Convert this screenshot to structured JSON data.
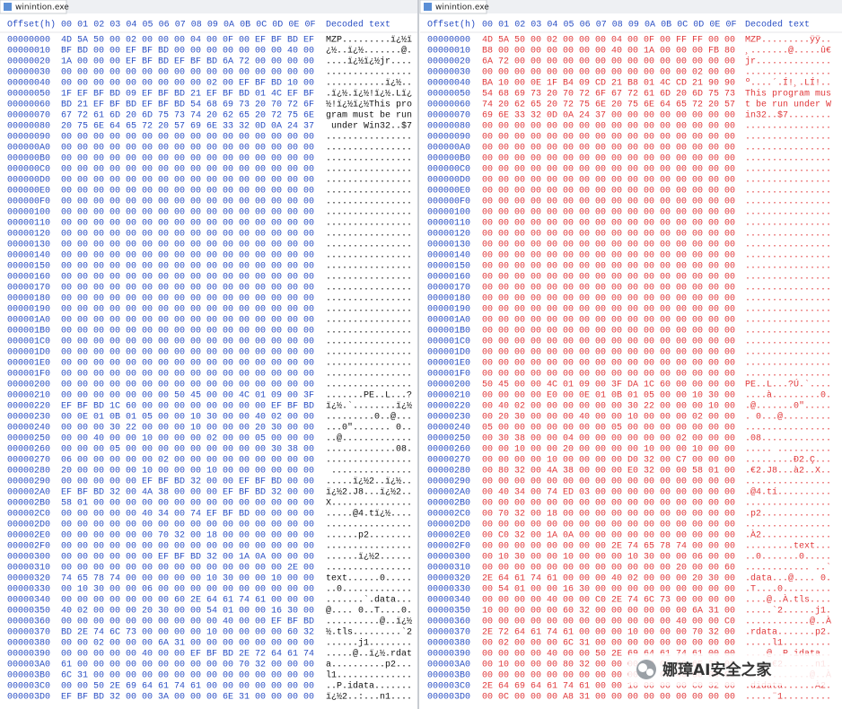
{
  "panes": [
    {
      "title": "winintion.exe",
      "header": {
        "offset": "Offset(h)",
        "columns": [
          "00",
          "01",
          "02",
          "03",
          "04",
          "05",
          "06",
          "07",
          "08",
          "09",
          "0A",
          "0B",
          "0C",
          "0D",
          "0E",
          "0F"
        ],
        "decoded": "Decoded text"
      },
      "rows": [
        [
          "00000000",
          "4D 5A 50 00 02 00 00 00 04 00 0F 00 EF BF BD EF",
          "MZP.........ï¿½ï"
        ],
        [
          "00000010",
          "BF BD 00 00 EF BF BD 00 00 00 00 00 00 00 40 00",
          "¿½..ï¿½.......@."
        ],
        [
          "00000020",
          "1A 00 00 00 EF BF BD EF BF BD 6A 72 00 00 00 00",
          "....ï¿½ï¿½jr...."
        ],
        [
          "00000030",
          "00 00 00 00 00 00 00 00 00 00 00 00 00 00 00 00",
          "................"
        ],
        [
          "00000040",
          "00 00 00 00 00 00 00 00 00 02 00 EF BF BD 10 00",
          "...........ï¿½.."
        ],
        [
          "00000050",
          "1F EF BF BD 09 EF BF BD 21 EF BF BD 01 4C EF BF",
          ".ï¿½.ï¿½!ï¿½.Lï¿"
        ],
        [
          "00000060",
          "BD 21 EF BF BD EF BF BD 54 68 69 73 20 70 72 6F",
          "½!ï¿½ï¿½This pro"
        ],
        [
          "00000070",
          "67 72 61 6D 20 6D 75 73 74 20 62 65 20 72 75 6E",
          "gram must be run"
        ],
        [
          "00000080",
          "20 75 6E 64 65 72 20 57 69 6E 33 32 0D 0A 24 37",
          " under Win32..$7"
        ],
        [
          "00000090",
          "00 00 00 00 00 00 00 00 00 00 00 00 00 00 00 00",
          "................"
        ],
        [
          "000000A0",
          "00 00 00 00 00 00 00 00 00 00 00 00 00 00 00 00",
          "................"
        ],
        [
          "000000B0",
          "00 00 00 00 00 00 00 00 00 00 00 00 00 00 00 00",
          "................"
        ],
        [
          "000000C0",
          "00 00 00 00 00 00 00 00 00 00 00 00 00 00 00 00",
          "................"
        ],
        [
          "000000D0",
          "00 00 00 00 00 00 00 00 00 00 00 00 00 00 00 00",
          "................"
        ],
        [
          "000000E0",
          "00 00 00 00 00 00 00 00 00 00 00 00 00 00 00 00",
          "................"
        ],
        [
          "000000F0",
          "00 00 00 00 00 00 00 00 00 00 00 00 00 00 00 00",
          "................"
        ],
        [
          "00000100",
          "00 00 00 00 00 00 00 00 00 00 00 00 00 00 00 00",
          "................"
        ],
        [
          "00000110",
          "00 00 00 00 00 00 00 00 00 00 00 00 00 00 00 00",
          "................"
        ],
        [
          "00000120",
          "00 00 00 00 00 00 00 00 00 00 00 00 00 00 00 00",
          "................"
        ],
        [
          "00000130",
          "00 00 00 00 00 00 00 00 00 00 00 00 00 00 00 00",
          "................"
        ],
        [
          "00000140",
          "00 00 00 00 00 00 00 00 00 00 00 00 00 00 00 00",
          "................"
        ],
        [
          "00000150",
          "00 00 00 00 00 00 00 00 00 00 00 00 00 00 00 00",
          "................"
        ],
        [
          "00000160",
          "00 00 00 00 00 00 00 00 00 00 00 00 00 00 00 00",
          "................"
        ],
        [
          "00000170",
          "00 00 00 00 00 00 00 00 00 00 00 00 00 00 00 00",
          "................"
        ],
        [
          "00000180",
          "00 00 00 00 00 00 00 00 00 00 00 00 00 00 00 00",
          "................"
        ],
        [
          "00000190",
          "00 00 00 00 00 00 00 00 00 00 00 00 00 00 00 00",
          "................"
        ],
        [
          "000001A0",
          "00 00 00 00 00 00 00 00 00 00 00 00 00 00 00 00",
          "................"
        ],
        [
          "000001B0",
          "00 00 00 00 00 00 00 00 00 00 00 00 00 00 00 00",
          "................"
        ],
        [
          "000001C0",
          "00 00 00 00 00 00 00 00 00 00 00 00 00 00 00 00",
          "................"
        ],
        [
          "000001D0",
          "00 00 00 00 00 00 00 00 00 00 00 00 00 00 00 00",
          "................"
        ],
        [
          "000001E0",
          "00 00 00 00 00 00 00 00 00 00 00 00 00 00 00 00",
          "................"
        ],
        [
          "000001F0",
          "00 00 00 00 00 00 00 00 00 00 00 00 00 00 00 00",
          "................"
        ],
        [
          "00000200",
          "00 00 00 00 00 00 00 00 00 00 00 00 00 00 00 00",
          "................"
        ],
        [
          "00000210",
          "00 00 00 00 00 00 00 50 45 00 00 4C 01 09 00 3F",
          ".......PE..L...?"
        ],
        [
          "00000220",
          "EF BF BD 1C 60 00 00 00 00 00 00 00 00 EF BF BD",
          "ï¿½.`........ï¿½"
        ],
        [
          "00000230",
          "00 0E 01 0B 01 05 00 00 10 30 00 00 40 02 00 00",
          ".........0..@..."
        ],
        [
          "00000240",
          "00 00 00 30 22 00 00 00 10 00 00 00 20 30 00 00",
          "...0\"....... 0.."
        ],
        [
          "00000250",
          "00 00 40 00 00 10 00 00 00 02 00 00 05 00 00 00",
          "..@............."
        ],
        [
          "00000260",
          "00 00 00 05 00 00 00 00 00 00 00 00 00 30 38 00",
          ".............08."
        ],
        [
          "00000270",
          "06 00 00 00 00 00 02 00 00 00 00 00 00 00 00 00",
          "................"
        ],
        [
          "00000280",
          "20 00 00 00 00 10 00 00 00 10 00 00 00 00 00 00",
          " ..............."
        ],
        [
          "00000290",
          "00 00 00 00 00 EF BF BD 32 00 00 EF BF BD 00 00",
          ".....ï¿½2..ï¿½.."
        ],
        [
          "000002A0",
          "EF BF BD 32 00 4A 38 00 00 00 EF BF BD 32 00 00",
          "ï¿½2.J8...ï¿½2.."
        ],
        [
          "000002B0",
          "58 01 00 00 00 00 00 00 00 00 00 00 00 00 00 00",
          "X..............."
        ],
        [
          "000002C0",
          "00 00 00 00 00 40 34 00 74 EF BF BD 00 00 00 00",
          ".....@4.tï¿½...."
        ],
        [
          "000002D0",
          "00 00 00 00 00 00 00 00 00 00 00 00 00 00 00 00",
          "................"
        ],
        [
          "000002E0",
          "00 00 00 00 00 00 70 32 00 18 00 00 00 00 00 00",
          "......p2........"
        ],
        [
          "000002F0",
          "00 00 00 00 00 00 00 00 00 00 00 00 00 00 00 00",
          "................"
        ],
        [
          "00000300",
          "00 00 00 00 00 00 EF BF BD 32 00 1A 0A 00 00 00",
          "......ï¿½2......"
        ],
        [
          "00000310",
          "00 00 00 00 00 00 00 00 00 00 00 00 00 00 2E 00",
          "................"
        ],
        [
          "00000320",
          "74 65 78 74 00 00 00 00 00 10 30 00 00 10 00 00",
          "text......0....."
        ],
        [
          "00000330",
          "00 10 30 00 00 06 00 00 00 00 00 00 00 00 00 00",
          "..0............."
        ],
        [
          "00000340",
          "00 00 00 00 00 00 00 60 2E 64 61 74 61 00 00 00",
          ".......`.data..."
        ],
        [
          "00000350",
          "40 02 00 00 00 20 30 00 00 54 01 00 00 16 30 00",
          "@.... 0..T....0."
        ],
        [
          "00000360",
          "00 00 00 00 00 00 00 00 00 00 40 00 00 EF BF BD",
          "..........@..ï¿½"
        ],
        [
          "00000370",
          "BD 2E 74 6C 73 00 00 00 00 10 00 00 00 00 60 32",
          "½.tls.........`2"
        ],
        [
          "00000380",
          "00 00 02 00 00 00 6A 31 00 00 00 00 00 00 00 00",
          "......j1........"
        ],
        [
          "00000390",
          "00 00 00 00 00 40 00 00 EF BF BD 2E 72 64 61 74",
          ".....@..ï¿½.rdat"
        ],
        [
          "000003A0",
          "61 00 00 00 00 00 00 00 00 00 00 70 32 00 00 00",
          "a..........p2..."
        ],
        [
          "000003B0",
          "6C 31 00 00 00 00 00 00 00 00 00 00 00 00 00 00",
          "l1.............."
        ],
        [
          "000003C0",
          "00 00 50 2E 69 64 61 74 61 00 00 00 00 00 00 00",
          "..P.idata......."
        ],
        [
          "000003D0",
          "EF BF BD 32 00 00 3A 00 00 00 6E 31 00 00 00 00",
          "ï¿½2..:...n1...."
        ]
      ]
    },
    {
      "title": "winintion.exe",
      "header": {
        "offset": "Offset(h)",
        "columns": [
          "00",
          "01",
          "02",
          "03",
          "04",
          "05",
          "06",
          "07",
          "08",
          "09",
          "0A",
          "0B",
          "0C",
          "0D",
          "0E",
          "0F"
        ],
        "decoded": "Decoded text"
      },
      "rows": [
        [
          "00000000",
          "4D 5A 50 00 02 00 00 00 04 00 0F 00 FF FF 00 00",
          "MZP.........ÿÿ.."
        ],
        [
          "00000010",
          "B8 00 00 00 00 00 00 00 40 00 1A 00 00 00 FB 80",
          "¸.......@.....û€"
        ],
        [
          "00000020",
          "6A 72 00 00 00 00 00 00 00 00 00 00 00 00 00 00",
          "jr.............."
        ],
        [
          "00000030",
          "00 00 00 00 00 00 00 00 00 00 00 00 00 02 00 00",
          "................"
        ],
        [
          "00000040",
          "BA 10 00 0E 1F B4 09 CD 21 B8 01 4C CD 21 90 90",
          "º....´.Í!¸.LÍ!.."
        ],
        [
          "00000050",
          "54 68 69 73 20 70 72 6F 67 72 61 6D 20 6D 75 73",
          "This program mus"
        ],
        [
          "00000060",
          "74 20 62 65 20 72 75 6E 20 75 6E 64 65 72 20 57",
          "t be run under W"
        ],
        [
          "00000070",
          "69 6E 33 32 0D 0A 24 37 00 00 00 00 00 00 00 00",
          "in32..$7........"
        ],
        [
          "00000080",
          "00 00 00 00 00 00 00 00 00 00 00 00 00 00 00 00",
          "................"
        ],
        [
          "00000090",
          "00 00 00 00 00 00 00 00 00 00 00 00 00 00 00 00",
          "................"
        ],
        [
          "000000A0",
          "00 00 00 00 00 00 00 00 00 00 00 00 00 00 00 00",
          "................"
        ],
        [
          "000000B0",
          "00 00 00 00 00 00 00 00 00 00 00 00 00 00 00 00",
          "................"
        ],
        [
          "000000C0",
          "00 00 00 00 00 00 00 00 00 00 00 00 00 00 00 00",
          "................"
        ],
        [
          "000000D0",
          "00 00 00 00 00 00 00 00 00 00 00 00 00 00 00 00",
          "................"
        ],
        [
          "000000E0",
          "00 00 00 00 00 00 00 00 00 00 00 00 00 00 00 00",
          "................"
        ],
        [
          "000000F0",
          "00 00 00 00 00 00 00 00 00 00 00 00 00 00 00 00",
          "................"
        ],
        [
          "00000100",
          "00 00 00 00 00 00 00 00 00 00 00 00 00 00 00 00",
          "................"
        ],
        [
          "00000110",
          "00 00 00 00 00 00 00 00 00 00 00 00 00 00 00 00",
          "................"
        ],
        [
          "00000120",
          "00 00 00 00 00 00 00 00 00 00 00 00 00 00 00 00",
          "................"
        ],
        [
          "00000130",
          "00 00 00 00 00 00 00 00 00 00 00 00 00 00 00 00",
          "................"
        ],
        [
          "00000140",
          "00 00 00 00 00 00 00 00 00 00 00 00 00 00 00 00",
          "................"
        ],
        [
          "00000150",
          "00 00 00 00 00 00 00 00 00 00 00 00 00 00 00 00",
          "................"
        ],
        [
          "00000160",
          "00 00 00 00 00 00 00 00 00 00 00 00 00 00 00 00",
          "................"
        ],
        [
          "00000170",
          "00 00 00 00 00 00 00 00 00 00 00 00 00 00 00 00",
          "................"
        ],
        [
          "00000180",
          "00 00 00 00 00 00 00 00 00 00 00 00 00 00 00 00",
          "................"
        ],
        [
          "00000190",
          "00 00 00 00 00 00 00 00 00 00 00 00 00 00 00 00",
          "................"
        ],
        [
          "000001A0",
          "00 00 00 00 00 00 00 00 00 00 00 00 00 00 00 00",
          "................"
        ],
        [
          "000001B0",
          "00 00 00 00 00 00 00 00 00 00 00 00 00 00 00 00",
          "................"
        ],
        [
          "000001C0",
          "00 00 00 00 00 00 00 00 00 00 00 00 00 00 00 00",
          "................"
        ],
        [
          "000001D0",
          "00 00 00 00 00 00 00 00 00 00 00 00 00 00 00 00",
          "................"
        ],
        [
          "000001E0",
          "00 00 00 00 00 00 00 00 00 00 00 00 00 00 00 00",
          "................"
        ],
        [
          "000001F0",
          "00 00 00 00 00 00 00 00 00 00 00 00 00 00 00 00",
          "................"
        ],
        [
          "00000200",
          "50 45 00 00 4C 01 09 00 3F DA 1C 60 00 00 00 00",
          "PE..L...?Ú.`...."
        ],
        [
          "00000210",
          "00 00 00 00 E0 00 0E 01 0B 01 05 00 00 10 30 00",
          "....à.........0."
        ],
        [
          "00000220",
          "00 40 02 00 00 00 00 00 00 30 22 00 00 00 10 00",
          ".@.......0\"....."
        ],
        [
          "00000230",
          "00 20 30 00 00 00 40 00 00 10 00 00 00 02 00 00",
          ". 0...@........."
        ],
        [
          "00000240",
          "05 00 00 00 00 00 00 00 05 00 00 00 00 00 00 00",
          "................"
        ],
        [
          "00000250",
          "00 30 38 00 00 04 00 00 00 00 00 00 02 00 00 00",
          ".08............."
        ],
        [
          "00000260",
          "00 00 10 00 00 20 00 00 00 00 10 00 00 10 00 00",
          "..... .........."
        ],
        [
          "00000270",
          "00 00 00 00 10 00 00 00 00 D0 32 00 C7 00 00 00",
          ".........Ð2.Ç..."
        ],
        [
          "00000280",
          "00 80 32 00 4A 38 00 00 00 E0 32 00 00 58 01 00",
          ".€2.J8...à2..X.."
        ],
        [
          "00000290",
          "00 00 00 00 00 00 00 00 00 00 00 00 00 00 00 00",
          "................"
        ],
        [
          "000002A0",
          "00 40 34 00 74 ED 03 00 00 00 00 00 00 00 00 00",
          ".@4.tí.........."
        ],
        [
          "000002B0",
          "00 00 00 00 00 00 00 00 00 00 00 00 00 00 00 00",
          "................"
        ],
        [
          "000002C0",
          "00 70 32 00 18 00 00 00 00 00 00 00 00 00 00 00",
          ".p2............."
        ],
        [
          "000002D0",
          "00 00 00 00 00 00 00 00 00 00 00 00 00 00 00 00",
          "................"
        ],
        [
          "000002E0",
          "00 C0 32 00 1A 0A 00 00 00 00 00 00 00 00 00 00",
          ".À2............."
        ],
        [
          "000002F0",
          "00 00 00 00 00 00 00 00 2E 74 65 78 74 00 00 00",
          ".........text..."
        ],
        [
          "00000300",
          "00 10 30 00 00 10 00 00 00 10 30 00 00 06 00 00",
          "..0.......0....."
        ],
        [
          "00000310",
          "00 00 00 00 00 00 00 00 00 00 00 00 20 00 00 60",
          "............ ..`"
        ],
        [
          "00000320",
          "2E 64 61 74 61 00 00 00 40 02 00 00 00 20 30 00",
          ".data...@.... 0."
        ],
        [
          "00000330",
          "00 54 01 00 00 16 30 00 00 00 00 00 00 00 00 00",
          ".T....0........."
        ],
        [
          "00000340",
          "00 00 00 00 40 00 00 C0 2E 74 6C 73 00 00 00 00",
          "....@..À.tls...."
        ],
        [
          "00000350",
          "10 00 00 00 00 60 32 00 00 00 00 00 00 6A 31 00",
          ".....`2......j1."
        ],
        [
          "00000360",
          "00 00 00 00 00 00 00 00 00 00 00 00 40 00 00 C0",
          "............@..À"
        ],
        [
          "00000370",
          "2E 72 64 61 74 61 00 00 00 10 00 00 00 70 32 00",
          ".rdata.......p2."
        ],
        [
          "00000380",
          "00 02 00 00 00 6C 31 00 00 00 00 00 00 00 00 00",
          ".....l1........."
        ],
        [
          "00000390",
          "00 00 00 00 40 00 00 50 2E 69 64 61 74 61 00 00",
          "....@..P.idata.."
        ],
        [
          "000003A0",
          "00 10 00 00 00 80 32 00 00 00 00 00 00 6E 31 00",
          ".....€2......n1."
        ],
        [
          "000003B0",
          "00 00 00 00 00 00 00 00 00 00 00 00 40 00 00 C0",
          "............@..À"
        ],
        [
          "000003C0",
          "2E 64 69 64 61 74 61 00 00 10 00 00 00 C0 32 00",
          ".didata......À2."
        ],
        [
          "000003D0",
          "00 0C 00 00 00 A8 31 00 00 00 00 00 00 00 00 00",
          ".....¨1........."
        ]
      ]
    }
  ],
  "watermark": {
    "text": "娜璋AI安全之家"
  }
}
